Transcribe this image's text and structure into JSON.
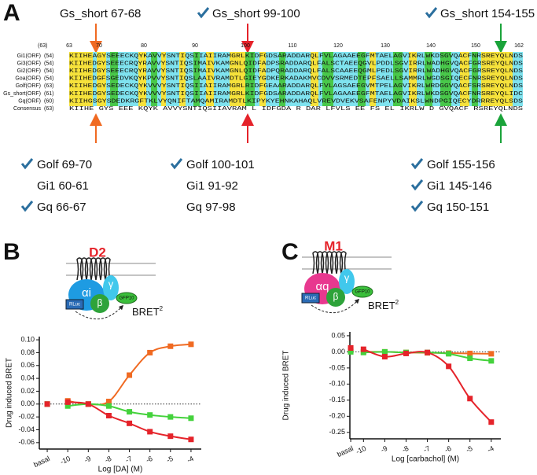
{
  "panel_a": {
    "letter": "A",
    "top_labels": [
      "Gs_short 67-68",
      "Gs_short 99-100",
      "Gs_short 154-155"
    ],
    "ruler": {
      "start": "(63)",
      "ticks": [
        "63",
        "70",
        "80",
        "90",
        "100",
        "110",
        "120",
        "130",
        "140",
        "150",
        "162"
      ]
    },
    "rows": [
      {
        "name": "Gi1(ORF)",
        "start": "(54)",
        "seq": "KIIHEAGYSEEECKQYKAVVYSNTIQSIIAIIRAMGRLKIDFGDSARADDARQLFVLAGAAEEGFMTAELAGVIKRLWKDSGVQACFNRSREYQLNDS"
      },
      {
        "name": "Gi3(ORF)",
        "start": "(54)",
        "seq": "KIIHEDGYSEEECRQYRAVVYSNTIQSIMAIVKAMGNLQIDFADPSRADDARQLFALSCTAEEQGVLPDDLSGVIRRLWADHGVQACFGRSREYQLNDS"
      },
      {
        "name": "Gi2(ORF)",
        "start": "(54)",
        "seq": "KIIHEDGYSEEECRQYRAVVYSNTIQSIMAIVKAMGNLQIDFADPQRADDARQLFALSCAAEEQGMLPEDLSGVIRRLWADHGVQACFGRSREYQLNDS"
      },
      {
        "name": "Goa(ORF)",
        "start": "(54)",
        "seq": "KIIHEDGFSGEDVKQYKPVVYSNTIQSLAAIVRAMDTLGIEYGDKERKADAKMVCDVVSRMEDTEPFSAELLSAMMRLWGDSGIQECFNRSREYQLNDS"
      },
      {
        "name": "Golf(ORF)",
        "start": "(63)",
        "seq": "KIIHEDGYSEDECKQYKVVVYSNTIQSIIAIIRAMGRLRIDFGEAARADDARQLFVLAGSAEEGVMTPELAGVIKRLWRDGGVQACFSRSREYQLNDS"
      },
      {
        "name": "Gs_short(ORF)",
        "start": "(61)",
        "seq": "KIIHEDGYSEDECKQYKVVVYSNTIQSIIAIIRAMGRLKIDFGDSARADDARQLFVLAGAAEEGFMTAELAGVIKRLWKDSGVQACFNRSREYQLIDC"
      },
      {
        "name": "Gq(ORF)",
        "start": "(60)",
        "seq": "KIIHGSGYSDEDKRGFTKLVYQNIFTAMQAMIRAMDTLKIPYKYEHNKAHAQLVREVDVEKVSAFENPYVDAIKSLWNDPGIQECYDRRREYQLSDS"
      },
      {
        "name": "Consensus",
        "start": "(63)",
        "seq": "KIIHE GYS EEE KQYK AVVYSNTIQSIIAVRAM L IDFGDA R DAR LFVLS  EE  FS EL  IKRLW D GVQACF RSREYQLNDS"
      }
    ],
    "bottom_labels": [
      [
        "Golf 69-70",
        "Gi1 60-61",
        "Gq 66-67"
      ],
      [
        "Golf 100-101",
        "Gi1 91-92",
        "Gq 97-98"
      ],
      [
        "Golf 155-156",
        "Gi1 145-146",
        "Gq 150-151"
      ]
    ]
  },
  "chart_data": [
    {
      "type": "line",
      "panel": "B",
      "diagram": {
        "receptor": "D2",
        "alpha": "αi",
        "beta": "β",
        "gamma": "γ",
        "donor": "RLuc",
        "acceptor": "GFP10",
        "signal": "BRET",
        "signal_sup": "2"
      },
      "x_label": "Log [DA] (M)",
      "y_label": "Drug induced BRET",
      "xlim": [
        -11.5,
        -3.5
      ],
      "xticks": [
        {
          "value": -11,
          "label": "basal"
        },
        -10,
        -9,
        -8,
        -7,
        -6,
        -5,
        -4
      ],
      "ylim": [
        -0.07,
        0.105
      ],
      "yticks": [
        {
          "value": 0.1,
          "label": "0.10"
        },
        0.08,
        0.06,
        0.04,
        0.02,
        {
          "value": 0,
          "label": "0.00"
        },
        -0.02,
        -0.04,
        -0.06
      ],
      "reference_line": 0,
      "x": [
        -10,
        -9,
        -8,
        -7,
        -6,
        -5,
        -4
      ],
      "series": [
        {
          "color": "#f06a22",
          "basal": 0,
          "values": [
            0.005,
            0.0,
            0.004,
            0.045,
            0.08,
            0.09,
            0.093
          ]
        },
        {
          "color": "#44d23c",
          "basal": 0,
          "values": [
            -0.003,
            0.0,
            -0.003,
            -0.012,
            -0.017,
            -0.02,
            -0.022
          ]
        },
        {
          "color": "#e5232a",
          "basal": 0,
          "values": [
            0.003,
            0.0,
            -0.018,
            -0.03,
            -0.043,
            -0.05,
            -0.055
          ]
        }
      ]
    },
    {
      "type": "line",
      "panel": "C",
      "diagram": {
        "receptor": "M1",
        "alpha": "αq",
        "beta": "β",
        "gamma": "γ",
        "donor": "RLuc",
        "acceptor": "GFP10",
        "signal": "BRET",
        "signal_sup": "2"
      },
      "x_label": "Log [carbachol] (M)",
      "y_label": "Drug induced BRET",
      "xlim": [
        -10.75,
        -3.55
      ],
      "xticks": [
        {
          "value": -10.6,
          "label": "basal"
        },
        -10,
        -9,
        -8,
        -7,
        -6,
        -5,
        -4
      ],
      "ylim": [
        -0.27,
        0.062
      ],
      "yticks": [
        0.05,
        {
          "value": 0,
          "label": "0.00"
        },
        -0.05,
        {
          "value": -0.1,
          "label": "-0.10"
        },
        -0.15,
        {
          "value": -0.2,
          "label": "-0.20"
        },
        -0.25
      ],
      "reference_line": 0,
      "x": [
        -10,
        -9,
        -8,
        -7,
        -6,
        -5,
        -4
      ],
      "series": [
        {
          "color": "#f06a22",
          "basal": 0.005,
          "values": [
            0.0,
            0.0,
            -0.002,
            -0.003,
            -0.004,
            -0.005,
            -0.006
          ]
        },
        {
          "color": "#44d23c",
          "basal": 0,
          "values": [
            -0.002,
            0.0,
            -0.002,
            -0.002,
            -0.006,
            -0.02,
            -0.028
          ]
        },
        {
          "color": "#e5232a",
          "basal": 0.012,
          "values": [
            0.008,
            -0.015,
            -0.005,
            -0.002,
            -0.045,
            -0.145,
            -0.218
          ]
        }
      ]
    }
  ]
}
